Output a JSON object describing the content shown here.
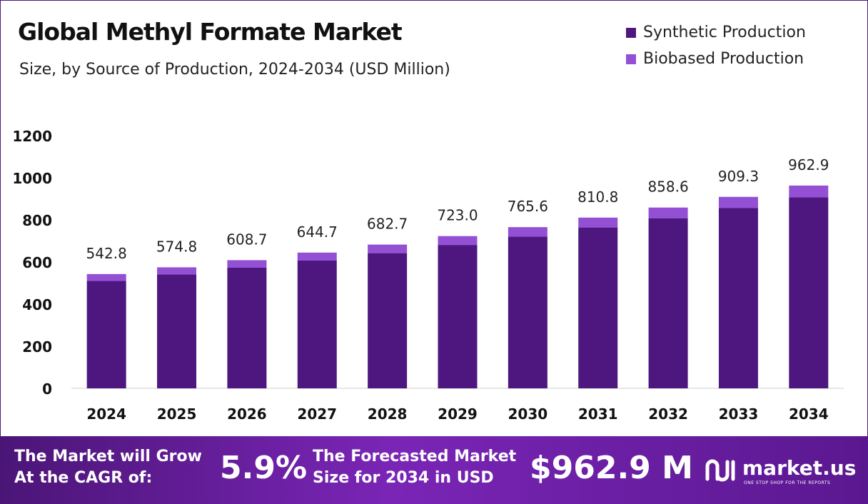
{
  "title": "Global Methyl Formate Market",
  "subtitle": "Size, by Source of Production, 2024-2034 (USD Million)",
  "legend": [
    {
      "label": "Synthetic Production",
      "color": "#4e1780"
    },
    {
      "label": "Biobased Production",
      "color": "#9450d4"
    }
  ],
  "chart_data": {
    "type": "bar",
    "stacked": true,
    "categories": [
      "2024",
      "2025",
      "2026",
      "2027",
      "2028",
      "2029",
      "2030",
      "2031",
      "2032",
      "2033",
      "2034"
    ],
    "series": [
      {
        "name": "Synthetic Production",
        "color": "#4e1780",
        "values": [
          510,
          541,
          573,
          607,
          642,
          681,
          721,
          764,
          808,
          856,
          907
        ]
      },
      {
        "name": "Biobased Production",
        "color": "#9450d4",
        "values": [
          32.8,
          33.8,
          35.7,
          37.7,
          40.7,
          42.0,
          44.6,
          46.8,
          50.6,
          53.3,
          55.9
        ]
      }
    ],
    "totals": [
      "542.8",
      "574.8",
      "608.7",
      "644.7",
      "682.7",
      "723.0",
      "765.6",
      "810.8",
      "858.6",
      "909.3",
      "962.9"
    ],
    "yticks": [
      "0",
      "200",
      "400",
      "600",
      "800",
      "1000",
      "1200"
    ],
    "ylim": [
      0,
      1200
    ],
    "legend_position": "top-right",
    "grid": false
  },
  "footer": {
    "cagr_label": "The Market will Grow At the CAGR of:",
    "cagr_value": "5.9%",
    "forecast_label": "The Forecasted Market Size for 2034 in USD",
    "forecast_value": "$962.9 M",
    "logo_name": "market.us",
    "logo_tagline": "ONE STOP SHOP FOR THE REPORTS"
  }
}
